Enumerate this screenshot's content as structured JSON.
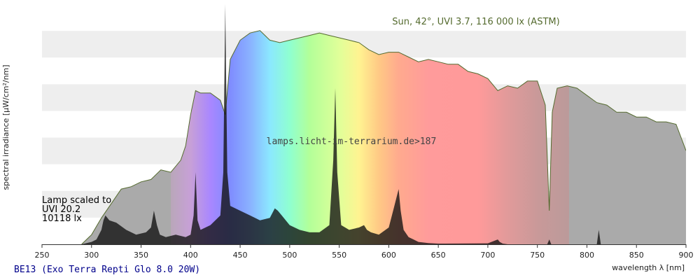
{
  "chart_data": {
    "type": "area",
    "xlabel": "wavelength λ [nm]",
    "ylabel": "spectral irradiance [µW/cm²/nm]",
    "xlim": [
      250,
      900
    ],
    "ylim": [
      0,
      1
    ],
    "xticks": [
      250,
      300,
      350,
      400,
      450,
      500,
      550,
      600,
      650,
      700,
      750,
      800,
      850,
      900
    ],
    "grid": "horizontal bands",
    "sun_label": "Sun, 42°, UVI 3.7, 116 000 lx (ASTM)",
    "watermark": "lamps.licht-im-terrarium.de>187",
    "lamp_label_lines": [
      "Lamp scaled to",
      "UVI 20.2",
      "10118 lx"
    ],
    "caption": "BE13 (Exo Terra Repti Glo 8.0 20W)",
    "series": [
      {
        "name": "Sun, 42°, UVI 3.7, 116 000 lx (ASTM)",
        "color": "#556b2f",
        "x": [
          290,
          300,
          310,
          320,
          330,
          340,
          350,
          360,
          370,
          380,
          390,
          395,
          400,
          405,
          410,
          420,
          430,
          435,
          440,
          450,
          460,
          470,
          480,
          490,
          500,
          510,
          520,
          530,
          540,
          550,
          560,
          570,
          580,
          590,
          600,
          610,
          620,
          630,
          640,
          650,
          660,
          670,
          680,
          690,
          700,
          710,
          720,
          730,
          740,
          750,
          758,
          762,
          765,
          770,
          780,
          790,
          800,
          810,
          820,
          830,
          840,
          850,
          860,
          870,
          880,
          890,
          900
        ],
        "values": [
          0.0,
          0.04,
          0.11,
          0.17,
          0.23,
          0.24,
          0.26,
          0.27,
          0.31,
          0.3,
          0.35,
          0.41,
          0.54,
          0.64,
          0.63,
          0.63,
          0.6,
          0.54,
          0.77,
          0.85,
          0.88,
          0.89,
          0.85,
          0.84,
          0.85,
          0.86,
          0.87,
          0.88,
          0.87,
          0.86,
          0.85,
          0.84,
          0.81,
          0.79,
          0.8,
          0.8,
          0.78,
          0.76,
          0.77,
          0.76,
          0.75,
          0.75,
          0.72,
          0.71,
          0.69,
          0.64,
          0.66,
          0.65,
          0.68,
          0.68,
          0.58,
          0.14,
          0.55,
          0.65,
          0.66,
          0.65,
          0.62,
          0.59,
          0.58,
          0.55,
          0.55,
          0.53,
          0.53,
          0.51,
          0.51,
          0.5,
          0.39
        ]
      },
      {
        "name": "Lamp scaled to UVI 20.2",
        "color": "#111111",
        "x": [
          290,
          300,
          305,
          310,
          312,
          314,
          318,
          325,
          335,
          345,
          355,
          360,
          363,
          366,
          369,
          375,
          385,
          395,
          400,
          403,
          405,
          407,
          410,
          420,
          430,
          433,
          435,
          437,
          440,
          450,
          460,
          470,
          480,
          485,
          488,
          492,
          500,
          510,
          520,
          530,
          540,
          544,
          546,
          548,
          552,
          560,
          570,
          575,
          578,
          582,
          590,
          600,
          605,
          610,
          612,
          615,
          620,
          625,
          630,
          640,
          650,
          700,
          710,
          712,
          715,
          720,
          760,
          762,
          764,
          800,
          810,
          812,
          814,
          820,
          900
        ],
        "values": [
          0.0,
          0.01,
          0.02,
          0.06,
          0.1,
          0.12,
          0.1,
          0.09,
          0.06,
          0.04,
          0.05,
          0.07,
          0.14,
          0.08,
          0.04,
          0.03,
          0.04,
          0.03,
          0.04,
          0.12,
          0.3,
          0.1,
          0.06,
          0.08,
          0.12,
          0.3,
          1.0,
          0.3,
          0.16,
          0.14,
          0.12,
          0.1,
          0.11,
          0.15,
          0.14,
          0.12,
          0.08,
          0.06,
          0.05,
          0.05,
          0.08,
          0.35,
          0.65,
          0.3,
          0.08,
          0.06,
          0.07,
          0.08,
          0.06,
          0.05,
          0.04,
          0.07,
          0.15,
          0.23,
          0.14,
          0.06,
          0.03,
          0.02,
          0.01,
          0.005,
          0.003,
          0.004,
          0.02,
          0.01,
          0.003,
          0.0,
          0.0,
          0.02,
          0.0,
          0.0,
          0.0,
          0.06,
          0.0,
          0.0,
          0.0
        ]
      }
    ]
  }
}
